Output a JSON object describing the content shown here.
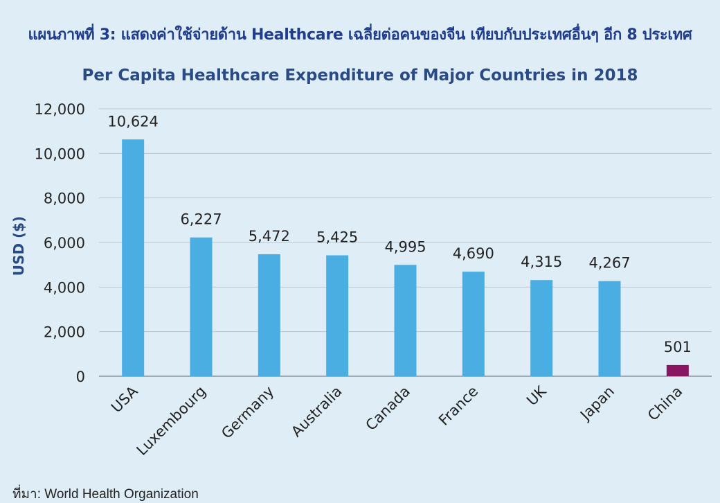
{
  "header_title": "แผนภาพที่ 3: แสดงค่าใช้จ่ายด้าน Healthcare เฉลี่ยต่อคนของจีน เทียบกับประเทศอื่นๆ อีก 8 ประเทศ",
  "source_note": "ที่มา: World Health Organization",
  "colors": {
    "background": "#dfedf6",
    "bar": "#4aaee3",
    "highlight_bar": "#8b1561",
    "title": "#2a4a86",
    "grid": "#b9c6d2"
  },
  "chart_data": {
    "type": "bar",
    "title": "Per Capita Healthcare Expenditure of Major Countries in 2018",
    "xlabel": "",
    "ylabel": "USD ($)",
    "ylim": [
      0,
      12000
    ],
    "yticks": [
      0,
      2000,
      4000,
      6000,
      8000,
      10000,
      12000
    ],
    "ytick_labels": [
      "0",
      "2,000",
      "4,000",
      "6,000",
      "8,000",
      "10,000",
      "12,000"
    ],
    "grid": true,
    "categories": [
      "USA",
      "Luxembourg",
      "Germany",
      "Australia",
      "Canada",
      "France",
      "UK",
      "Japan",
      "China"
    ],
    "values": [
      10624,
      6227,
      5472,
      5425,
      4995,
      4690,
      4315,
      4267,
      501
    ],
    "data_labels": [
      "10,624",
      "6,227",
      "5,472",
      "5,425",
      "4,995",
      "4,690",
      "4,315",
      "4,267",
      "501"
    ],
    "highlight_category": "China"
  }
}
